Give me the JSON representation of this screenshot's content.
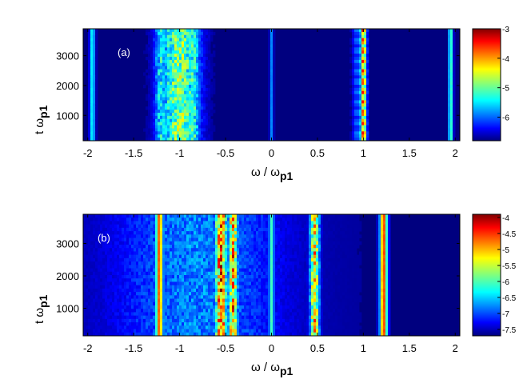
{
  "figure": {
    "panels": [
      "(a)",
      "(b)"
    ]
  },
  "chart_data": [
    {
      "type": "heatmap",
      "panel_label": "(a)",
      "xlabel": {
        "main": "ω / ω",
        "sub": "p1"
      },
      "ylabel": {
        "main": "t ω",
        "sub": "p1"
      },
      "x_ticks": [
        "-2",
        "-1.5",
        "-1",
        "-0.5",
        "0",
        "0.5",
        "1",
        "1.5",
        "2"
      ],
      "x_tick_values": [
        -2,
        -1.5,
        -1,
        -0.5,
        0,
        0.5,
        1,
        1.5,
        2
      ],
      "y_ticks": [
        "1000",
        "2000",
        "3000"
      ],
      "y_tick_values": [
        1000,
        2000,
        3000
      ],
      "xlim": [
        -2.05,
        2.05
      ],
      "ylim": [
        150,
        3900
      ],
      "colormap": "jet",
      "colorbar": {
        "range": [
          -6.8,
          -3.0
        ],
        "ticks": [
          "-3",
          "-4",
          "-5",
          "-6"
        ],
        "tick_values": [
          -3,
          -4,
          -5,
          -6
        ]
      },
      "background_level": -6.8,
      "features": [
        {
          "omega": 1.0,
          "width": 0.035,
          "level": -3.3,
          "modulation": "striped"
        },
        {
          "omega": 0.93,
          "width": 0.05,
          "level": -5.8,
          "modulation": "striped"
        },
        {
          "omega": -1.0,
          "width": 0.22,
          "level": -4.6,
          "modulation": "noisy"
        },
        {
          "omega": -1.2,
          "width": 0.08,
          "level": -5.2,
          "modulation": "noisy"
        },
        {
          "omega": -0.85,
          "width": 0.07,
          "level": -5.0,
          "modulation": "noisy"
        },
        {
          "omega": -1.95,
          "width": 0.03,
          "level": -5.3,
          "modulation": "steady"
        },
        {
          "omega": 1.95,
          "width": 0.025,
          "level": -5.0,
          "modulation": "steady"
        },
        {
          "omega": 0.0,
          "width": 0.02,
          "level": -5.8,
          "modulation": "steady"
        }
      ]
    },
    {
      "type": "heatmap",
      "panel_label": "(b)",
      "xlabel": {
        "main": "ω / ω",
        "sub": "p1"
      },
      "ylabel": {
        "main": "t ω",
        "sub": "p1"
      },
      "x_ticks": [
        "-2",
        "-1.5",
        "-1",
        "-0.5",
        "0",
        "0.5",
        "1",
        "1.5",
        "2"
      ],
      "x_tick_values": [
        -2,
        -1.5,
        -1,
        -0.5,
        0,
        0.5,
        1,
        1.5,
        2
      ],
      "y_ticks": [
        "1000",
        "2000",
        "3000"
      ],
      "y_tick_values": [
        1000,
        2000,
        3000
      ],
      "xlim": [
        -2.05,
        2.05
      ],
      "ylim": [
        150,
        3900
      ],
      "colormap": "jet",
      "colorbar": {
        "range": [
          -7.7,
          -3.9
        ],
        "ticks": [
          "-4",
          "-4.5",
          "-5",
          "-5.5",
          "-6",
          "-6.5",
          "-7",
          "-7.5"
        ],
        "tick_values": [
          -4,
          -4.5,
          -5,
          -5.5,
          -6,
          -6.5,
          -7,
          -7.5
        ]
      },
      "background_level": -7.6,
      "features": [
        {
          "omega": -1.22,
          "width": 0.04,
          "level": -4.6,
          "modulation": "steady"
        },
        {
          "omega": 1.22,
          "width": 0.04,
          "level": -4.5,
          "modulation": "steady"
        },
        {
          "omega": -0.55,
          "width": 0.06,
          "level": -4.2,
          "modulation": "noisy"
        },
        {
          "omega": -0.42,
          "width": 0.05,
          "level": -4.5,
          "modulation": "noisy"
        },
        {
          "omega": 0.47,
          "width": 0.05,
          "level": -4.8,
          "modulation": "noisy"
        },
        {
          "omega": 0.0,
          "width": 0.03,
          "level": -6.0,
          "modulation": "steady"
        },
        {
          "omega": -0.8,
          "width": 0.9,
          "level": -6.6,
          "modulation": "noisy"
        }
      ]
    }
  ]
}
